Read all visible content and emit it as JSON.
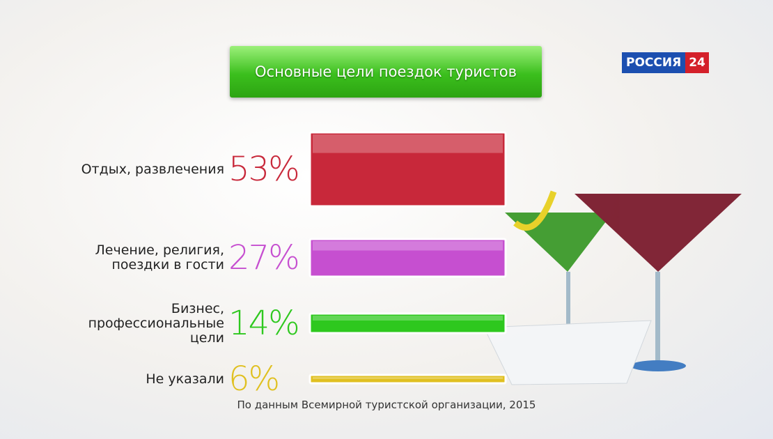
{
  "chart_data": {
    "type": "bar",
    "title": "Основные цели поездок туристов",
    "categories": [
      "Отдых, развлечения",
      "Лечение, религия,\nпоездки в гости",
      "Бизнес,\nпрофессиональные\nцели",
      "Не указали"
    ],
    "values": [
      53,
      27,
      14,
      6
    ],
    "value_labels": [
      "53%",
      "27%",
      "14%",
      "6%"
    ],
    "colors": [
      "#c8283a",
      "#c64fd0",
      "#2ec81e",
      "#e0c020"
    ],
    "source": "По данным Всемирной туристской организации, 2015"
  },
  "logo": {
    "name": "РОССИЯ",
    "number": "24"
  }
}
